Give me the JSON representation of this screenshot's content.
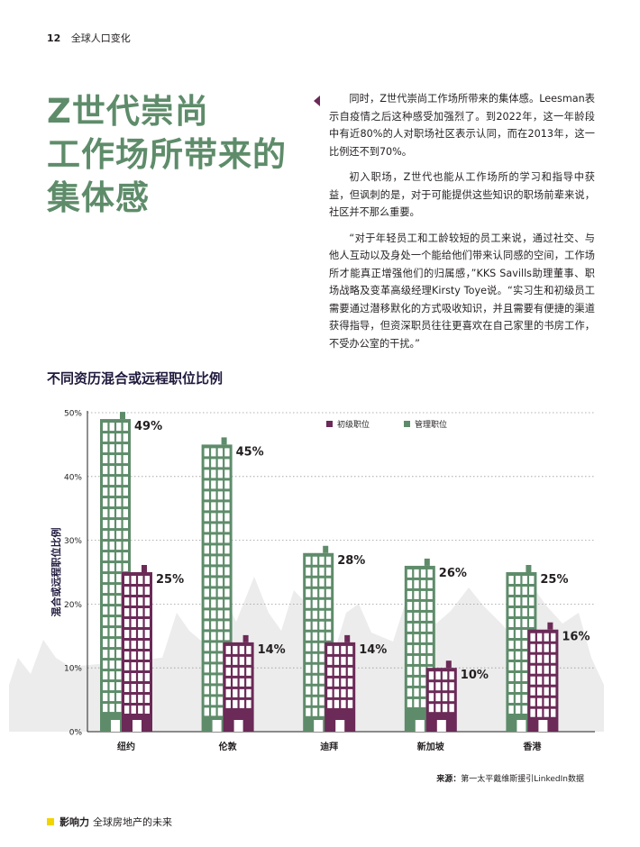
{
  "header": {
    "page_number": "12",
    "section": "全球人口变化"
  },
  "title": {
    "line1": "Z世代崇尚",
    "line2": "工作场所带来的",
    "line3": "集体感"
  },
  "paragraphs": [
    "同时，Z世代崇尚工作场所带来的集体感。Leesman表示自疫情之后这种感受加强烈了。到2022年，这一年龄段中有近80%的人对职场社区表示认同，而在2013年，这一比例还不到70%。",
    "初入职场，Z世代也能从工作场所的学习和指导中获益，但讽刺的是，对于可能提供这些知识的职场前辈来说，社区并不那么重要。",
    "“对于年轻员工和工龄较短的员工来说，通过社交、与他人互动以及身处一个能给他们带来认同感的空间，工作场所才能真正增强他们的归属感，”KKS Savills助理董事、职场战略及变革高级经理Kirsty Toye说。“实习生和初级员工需要通过潜移默化的方式吸收知识，并且需要有便捷的渠道获得指导，但资深职员往往更喜欢在自己家里的书房工作，不受办公室的干扰。”"
  ],
  "chart_title": "不同资历混合或远程职位比例",
  "chart_data": {
    "type": "bar",
    "categories": [
      "纽约",
      "伦敦",
      "迪拜",
      "新加坡",
      "香港"
    ],
    "series": [
      {
        "name": "初级职位",
        "values": [
          25,
          14,
          14,
          10,
          16
        ],
        "color": "#6b2a57"
      },
      {
        "name": "管理职位",
        "values": [
          49,
          45,
          28,
          26,
          25
        ],
        "color": "#5e8c6a"
      }
    ],
    "value_labels": {
      "初级职位": [
        "25%",
        "14%",
        "14%",
        "10%",
        "16%"
      ],
      "管理职位": [
        "49%",
        "45%",
        "28%",
        "26%",
        "25%"
      ]
    },
    "ylabel": "混合或远程职位比例",
    "yticks": [
      "0%",
      "10%",
      "20%",
      "30%",
      "40%",
      "50%"
    ],
    "ylim": [
      0,
      50
    ],
    "grid": "dotted horizontal",
    "legend_position": "top-right"
  },
  "source": {
    "label": "来源：",
    "text": "第一太平戴维斯援引LinkedIn数据"
  },
  "footer": {
    "brand": "影响力",
    "text": "全球房地产的未来"
  }
}
